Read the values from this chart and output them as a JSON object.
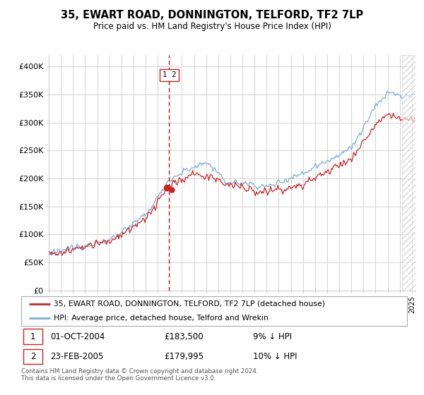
{
  "title": "35, EWART ROAD, DONNINGTON, TELFORD, TF2 7LP",
  "subtitle": "Price paid vs. HM Land Registry's House Price Index (HPI)",
  "ylim": [
    0,
    420000
  ],
  "xlim_start": 1995.0,
  "xlim_end": 2025.3,
  "hpi_color": "#7aadd4",
  "price_color": "#cc2222",
  "dashed_line_x": 2004.95,
  "sale1_date": "01-OCT-2004",
  "sale1_price": "£183,500",
  "sale1_hpi": "9% ↓ HPI",
  "sale1_x": 2004.75,
  "sale1_y": 183500,
  "sale2_date": "23-FEB-2005",
  "sale2_price": "£179,995",
  "sale2_hpi": "10% ↓ HPI",
  "sale2_x": 2005.14,
  "sale2_y": 179995,
  "legend_line1": "35, EWART ROAD, DONNINGTON, TELFORD, TF2 7LP (detached house)",
  "legend_line2": "HPI: Average price, detached house, Telford and Wrekin",
  "footnote": "Contains HM Land Registry data © Crown copyright and database right 2024.\nThis data is licensed under the Open Government Licence v3.0.",
  "background_color": "#ffffff",
  "grid_color": "#cccccc",
  "hatch_start": 2024.17
}
